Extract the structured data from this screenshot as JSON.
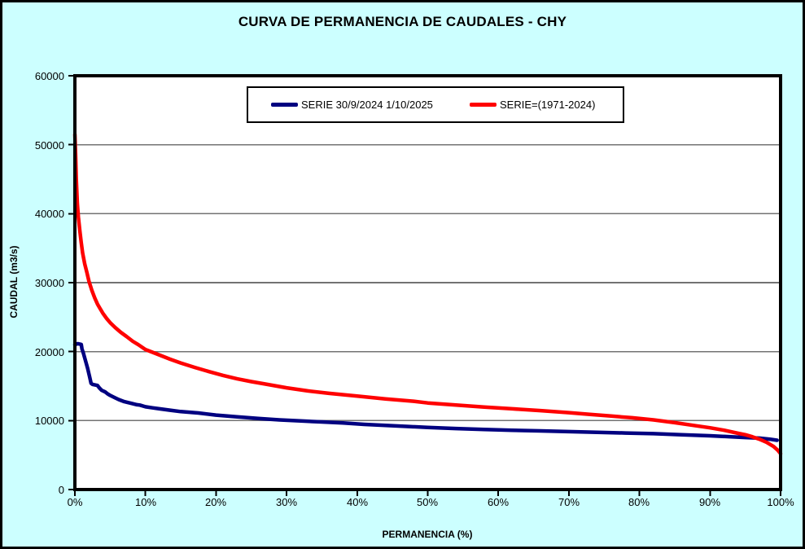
{
  "colors": {
    "background": "#CCFFFF",
    "plot_background": "#FFFFFF",
    "gridline": "#737373",
    "axis": "#000000",
    "series_blue": "#000080",
    "series_red": "#FF0000"
  },
  "chart_data": {
    "type": "line",
    "title": "CURVA DE PERMANENCIA DE CAUDALES - CHY",
    "xlabel": "PERMANENCIA (%)",
    "ylabel": "CAUDAL (m3/s)",
    "xlim": [
      0,
      100
    ],
    "ylim": [
      0,
      60000
    ],
    "grid": "horizontal",
    "legend_position": "top-center-inside",
    "x_ticks": [
      0,
      10,
      20,
      30,
      40,
      50,
      60,
      70,
      80,
      90,
      100
    ],
    "x_tick_labels": [
      "0%",
      "10%",
      "20%",
      "30%",
      "40%",
      "50%",
      "60%",
      "70%",
      "80%",
      "90%",
      "100%"
    ],
    "y_ticks": [
      0,
      10000,
      20000,
      30000,
      40000,
      50000,
      60000
    ],
    "y_tick_labels": [
      "0",
      "10000",
      "20000",
      "30000",
      "40000",
      "50000",
      "60000"
    ],
    "series": [
      {
        "name": "SERIE 30/9/2024 1/10/2025",
        "color": "#000080",
        "points": [
          [
            0,
            21000
          ],
          [
            0.4,
            21150
          ],
          [
            0.9,
            21050
          ],
          [
            1.0,
            20400
          ],
          [
            1.2,
            19800
          ],
          [
            1.5,
            18700
          ],
          [
            1.8,
            17600
          ],
          [
            2.1,
            16300
          ],
          [
            2.3,
            15400
          ],
          [
            2.5,
            15250
          ],
          [
            3.2,
            15100
          ],
          [
            3.5,
            14700
          ],
          [
            3.8,
            14400
          ],
          [
            4.3,
            14150
          ],
          [
            4.6,
            13900
          ],
          [
            5.0,
            13650
          ],
          [
            5.6,
            13350
          ],
          [
            6.2,
            13050
          ],
          [
            7.0,
            12750
          ],
          [
            8.0,
            12500
          ],
          [
            8.8,
            12300
          ],
          [
            9.2,
            12250
          ],
          [
            10,
            12000
          ],
          [
            11,
            11850
          ],
          [
            12,
            11700
          ],
          [
            13.5,
            11500
          ],
          [
            15,
            11300
          ],
          [
            17.5,
            11100
          ],
          [
            20,
            10800
          ],
          [
            23,
            10550
          ],
          [
            26,
            10300
          ],
          [
            29,
            10100
          ],
          [
            32,
            9950
          ],
          [
            35,
            9800
          ],
          [
            38,
            9650
          ],
          [
            41,
            9450
          ],
          [
            44,
            9300
          ],
          [
            47,
            9150
          ],
          [
            50,
            9000
          ],
          [
            54,
            8850
          ],
          [
            58,
            8700
          ],
          [
            62,
            8600
          ],
          [
            66,
            8500
          ],
          [
            70,
            8400
          ],
          [
            74,
            8300
          ],
          [
            78,
            8200
          ],
          [
            82,
            8100
          ],
          [
            86,
            7950
          ],
          [
            90,
            7800
          ],
          [
            93,
            7650
          ],
          [
            95,
            7550
          ],
          [
            97,
            7450
          ],
          [
            98.5,
            7300
          ],
          [
            99.5,
            7150
          ]
        ]
      },
      {
        "name": "SERIE=(1971-2024)",
        "color": "#FF0000",
        "points": [
          [
            0,
            51500
          ],
          [
            0.1,
            48500
          ],
          [
            0.2,
            45000
          ],
          [
            0.35,
            41500
          ],
          [
            0.5,
            39500
          ],
          [
            0.7,
            37500
          ],
          [
            0.9,
            35800
          ],
          [
            1.1,
            34300
          ],
          [
            1.4,
            32700
          ],
          [
            1.7,
            31500
          ],
          [
            2.0,
            30200
          ],
          [
            2.4,
            28900
          ],
          [
            2.8,
            27800
          ],
          [
            3.2,
            26900
          ],
          [
            3.6,
            26200
          ],
          [
            4.0,
            25500
          ],
          [
            4.5,
            24800
          ],
          [
            5.0,
            24200
          ],
          [
            5.7,
            23500
          ],
          [
            6.5,
            22800
          ],
          [
            7.3,
            22200
          ],
          [
            8.2,
            21500
          ],
          [
            9.0,
            21000
          ],
          [
            10,
            20300
          ],
          [
            11,
            19900
          ],
          [
            12,
            19500
          ],
          [
            13.5,
            18900
          ],
          [
            15,
            18350
          ],
          [
            17,
            17700
          ],
          [
            19,
            17100
          ],
          [
            21,
            16550
          ],
          [
            23,
            16050
          ],
          [
            25,
            15650
          ],
          [
            27,
            15300
          ],
          [
            30,
            14750
          ],
          [
            33,
            14300
          ],
          [
            36,
            13950
          ],
          [
            40,
            13550
          ],
          [
            44,
            13150
          ],
          [
            48,
            12800
          ],
          [
            50,
            12550
          ],
          [
            54,
            12250
          ],
          [
            58,
            11950
          ],
          [
            62,
            11700
          ],
          [
            66,
            11450
          ],
          [
            70,
            11150
          ],
          [
            73,
            10900
          ],
          [
            76,
            10650
          ],
          [
            79,
            10400
          ],
          [
            82,
            10100
          ],
          [
            85,
            9700
          ],
          [
            88,
            9250
          ],
          [
            90,
            8950
          ],
          [
            92,
            8600
          ],
          [
            94,
            8150
          ],
          [
            95,
            7950
          ],
          [
            96,
            7650
          ],
          [
            97,
            7300
          ],
          [
            98,
            6850
          ],
          [
            99,
            6250
          ],
          [
            99.6,
            5700
          ],
          [
            100,
            5200
          ]
        ]
      }
    ]
  }
}
